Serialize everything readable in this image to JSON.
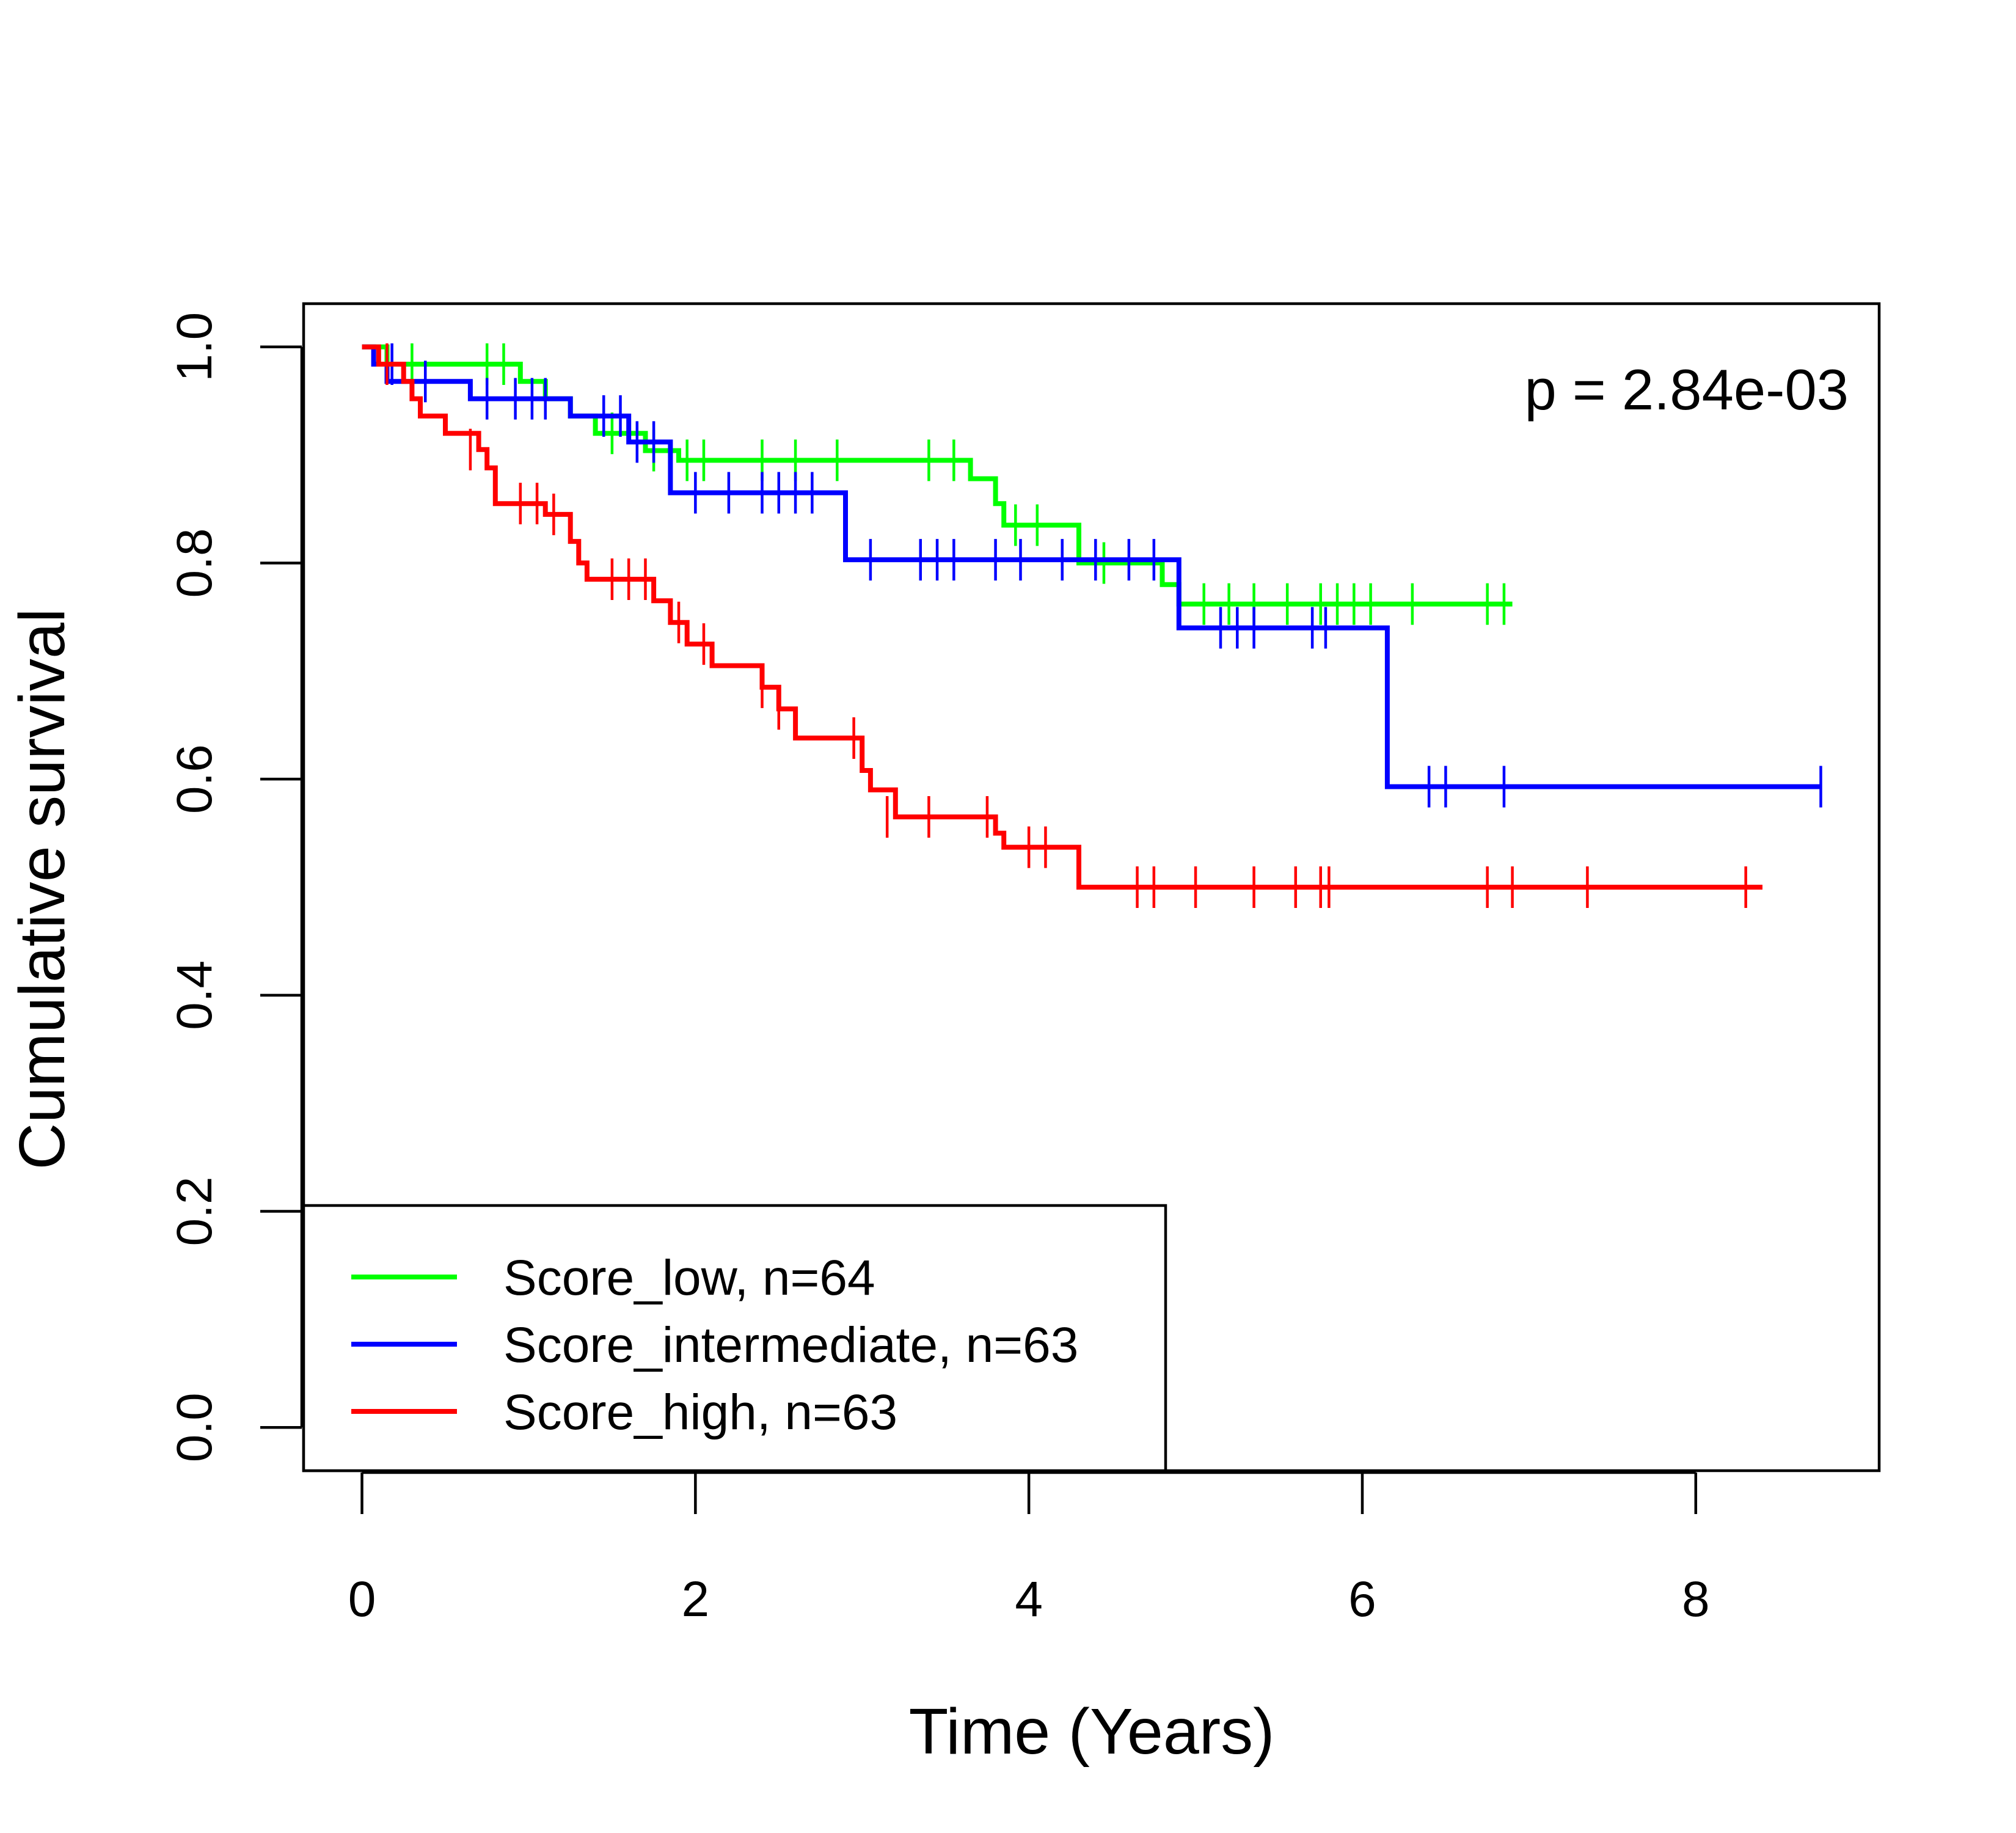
{
  "chart_data": {
    "type": "line",
    "subtype": "kaplan-meier",
    "title": "",
    "xlabel": "Time (Years)",
    "ylabel": "Cumulative survival",
    "xlim": [
      -0.35,
      9.1
    ],
    "ylim": [
      -0.04,
      1.04
    ],
    "x_ticks": [
      0,
      2,
      4,
      6,
      8
    ],
    "y_ticks": [
      0.0,
      0.2,
      0.4,
      0.6,
      0.8,
      1.0
    ],
    "x_tick_labels": [
      "0",
      "2",
      "4",
      "6",
      "8"
    ],
    "y_tick_labels": [
      "0.0",
      "0.2",
      "0.4",
      "0.6",
      "0.8",
      "1.0"
    ],
    "grid": false,
    "legend_position": "bottom-left",
    "annotation": "p = 2.84e-03",
    "series": [
      {
        "name": "Score_low, n=64",
        "color": "#00FF00",
        "steps": [
          [
            0,
            1.0
          ],
          [
            0.15,
            0.984
          ],
          [
            0.95,
            0.968
          ],
          [
            1.1,
            0.952
          ],
          [
            1.25,
            0.936
          ],
          [
            1.4,
            0.92
          ],
          [
            1.7,
            0.904
          ],
          [
            1.9,
            0.895
          ],
          [
            3.65,
            0.878
          ],
          [
            3.8,
            0.855
          ],
          [
            3.85,
            0.835
          ],
          [
            4.3,
            0.8
          ],
          [
            4.8,
            0.78
          ],
          [
            4.9,
            0.762
          ],
          [
            6.9,
            0.762
          ]
        ],
        "censors": [
          [
            0.3,
            0.984
          ],
          [
            0.75,
            0.984
          ],
          [
            0.85,
            0.984
          ],
          [
            1.5,
            0.92
          ],
          [
            1.75,
            0.904
          ],
          [
            1.95,
            0.895
          ],
          [
            2.05,
            0.895
          ],
          [
            2.4,
            0.895
          ],
          [
            2.6,
            0.895
          ],
          [
            2.85,
            0.895
          ],
          [
            3.4,
            0.895
          ],
          [
            3.55,
            0.895
          ],
          [
            3.92,
            0.835
          ],
          [
            4.05,
            0.835
          ],
          [
            4.45,
            0.8
          ],
          [
            4.9,
            0.762
          ],
          [
            5.05,
            0.762
          ],
          [
            5.2,
            0.762
          ],
          [
            5.35,
            0.762
          ],
          [
            5.55,
            0.762
          ],
          [
            5.75,
            0.762
          ],
          [
            5.85,
            0.762
          ],
          [
            5.95,
            0.762
          ],
          [
            6.05,
            0.762
          ],
          [
            6.3,
            0.762
          ],
          [
            6.75,
            0.762
          ],
          [
            6.85,
            0.762
          ]
        ]
      },
      {
        "name": "Score_intermediate, n=63",
        "color": "#0000FF",
        "steps": [
          [
            0,
            1.0
          ],
          [
            0.07,
            0.984
          ],
          [
            0.15,
            0.968
          ],
          [
            0.65,
            0.952
          ],
          [
            1.25,
            0.936
          ],
          [
            1.6,
            0.912
          ],
          [
            1.85,
            0.865
          ],
          [
            2.9,
            0.803
          ],
          [
            4.9,
            0.74
          ],
          [
            6.15,
            0.593
          ],
          [
            8.75,
            0.593
          ]
        ],
        "censors": [
          [
            0.18,
            0.984
          ],
          [
            0.38,
            0.968
          ],
          [
            0.75,
            0.952
          ],
          [
            0.92,
            0.952
          ],
          [
            1.02,
            0.952
          ],
          [
            1.1,
            0.952
          ],
          [
            1.45,
            0.936
          ],
          [
            1.55,
            0.936
          ],
          [
            1.65,
            0.912
          ],
          [
            1.75,
            0.912
          ],
          [
            2.0,
            0.865
          ],
          [
            2.2,
            0.865
          ],
          [
            2.4,
            0.865
          ],
          [
            2.5,
            0.865
          ],
          [
            2.6,
            0.865
          ],
          [
            2.7,
            0.865
          ],
          [
            3.05,
            0.803
          ],
          [
            3.35,
            0.803
          ],
          [
            3.45,
            0.803
          ],
          [
            3.55,
            0.803
          ],
          [
            3.8,
            0.803
          ],
          [
            3.95,
            0.803
          ],
          [
            4.2,
            0.803
          ],
          [
            4.4,
            0.803
          ],
          [
            4.6,
            0.803
          ],
          [
            4.75,
            0.803
          ],
          [
            5.15,
            0.74
          ],
          [
            5.25,
            0.74
          ],
          [
            5.35,
            0.74
          ],
          [
            5.7,
            0.74
          ],
          [
            5.78,
            0.74
          ],
          [
            6.4,
            0.593
          ],
          [
            6.5,
            0.593
          ],
          [
            6.85,
            0.593
          ],
          [
            8.75,
            0.593
          ]
        ]
      },
      {
        "name": "Score_high, n=63",
        "color": "#FF0000",
        "steps": [
          [
            0,
            1.0
          ],
          [
            0.1,
            0.984
          ],
          [
            0.25,
            0.968
          ],
          [
            0.3,
            0.952
          ],
          [
            0.35,
            0.936
          ],
          [
            0.5,
            0.92
          ],
          [
            0.7,
            0.905
          ],
          [
            0.75,
            0.888
          ],
          [
            0.8,
            0.855
          ],
          [
            1.1,
            0.845
          ],
          [
            1.25,
            0.82
          ],
          [
            1.3,
            0.8
          ],
          [
            1.35,
            0.785
          ],
          [
            1.75,
            0.765
          ],
          [
            1.85,
            0.745
          ],
          [
            1.95,
            0.725
          ],
          [
            2.1,
            0.705
          ],
          [
            2.4,
            0.685
          ],
          [
            2.5,
            0.665
          ],
          [
            2.6,
            0.638
          ],
          [
            3.0,
            0.608
          ],
          [
            3.05,
            0.59
          ],
          [
            3.2,
            0.565
          ],
          [
            3.8,
            0.55
          ],
          [
            3.85,
            0.537
          ],
          [
            4.3,
            0.5
          ],
          [
            8.4,
            0.5
          ]
        ],
        "censors": [
          [
            0.15,
            0.984
          ],
          [
            0.65,
            0.905
          ],
          [
            0.95,
            0.855
          ],
          [
            1.05,
            0.855
          ],
          [
            1.15,
            0.845
          ],
          [
            1.5,
            0.785
          ],
          [
            1.6,
            0.785
          ],
          [
            1.7,
            0.785
          ],
          [
            1.9,
            0.745
          ],
          [
            2.05,
            0.725
          ],
          [
            2.4,
            0.685
          ],
          [
            2.5,
            0.665
          ],
          [
            2.95,
            0.638
          ],
          [
            3.15,
            0.565
          ],
          [
            3.4,
            0.565
          ],
          [
            3.75,
            0.565
          ],
          [
            4.0,
            0.537
          ],
          [
            4.1,
            0.537
          ],
          [
            4.65,
            0.5
          ],
          [
            4.75,
            0.5
          ],
          [
            5.0,
            0.5
          ],
          [
            5.35,
            0.5
          ],
          [
            5.6,
            0.5
          ],
          [
            5.75,
            0.5
          ],
          [
            5.8,
            0.5
          ],
          [
            6.75,
            0.5
          ],
          [
            6.9,
            0.5
          ],
          [
            7.35,
            0.5
          ],
          [
            8.3,
            0.5
          ]
        ]
      }
    ]
  }
}
